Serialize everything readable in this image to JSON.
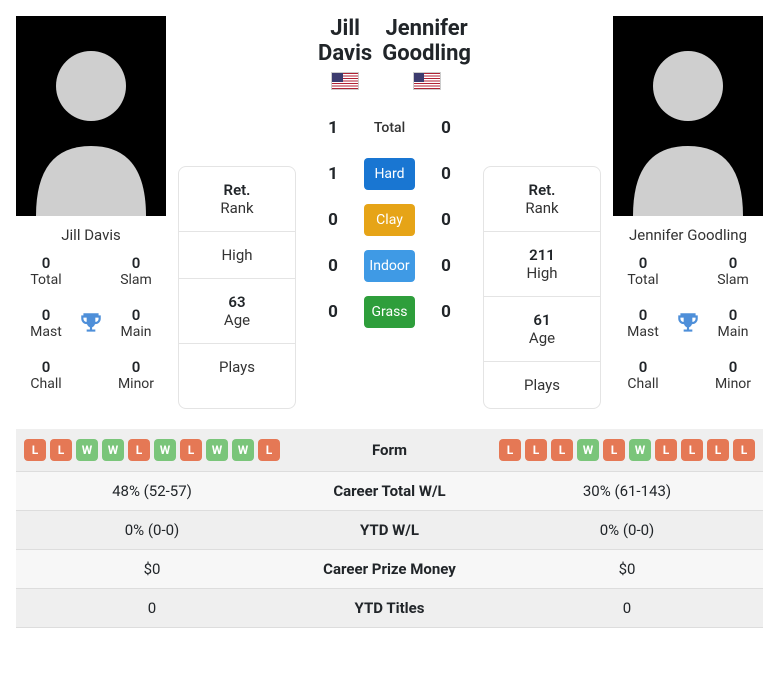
{
  "players": {
    "p1": {
      "name": "Jill Davis",
      "country": "US",
      "titles": {
        "total": 0,
        "slam": 0,
        "mast": 0,
        "main": 0,
        "chall": 0,
        "minor": 0
      },
      "rank": {
        "ret": "Ret.",
        "rank_label": "Rank",
        "high_val": "",
        "high_label": "High",
        "age_val": "63",
        "age_label": "Age",
        "plays_val": "",
        "plays_label": "Plays"
      }
    },
    "p2": {
      "name": "Jennifer Goodling",
      "country": "US",
      "titles": {
        "total": 0,
        "slam": 0,
        "mast": 0,
        "main": 0,
        "chall": 0,
        "minor": 0
      },
      "rank": {
        "ret": "Ret.",
        "rank_label": "Rank",
        "high_val": "211",
        "high_label": "High",
        "age_val": "61",
        "age_label": "Age",
        "plays_val": "",
        "plays_label": "Plays"
      }
    }
  },
  "title_labels": {
    "total": "Total",
    "slam": "Slam",
    "mast": "Mast",
    "main": "Main",
    "chall": "Chall",
    "minor": "Minor"
  },
  "h2h": {
    "rows": [
      {
        "p1": 1,
        "label": "Total",
        "p2": 0,
        "cls": "surface-total"
      },
      {
        "p1": 1,
        "label": "Hard",
        "p2": 0,
        "cls": "surface-hard"
      },
      {
        "p1": 0,
        "label": "Clay",
        "p2": 0,
        "cls": "surface-clay"
      },
      {
        "p1": 0,
        "label": "Indoor",
        "p2": 0,
        "cls": "surface-indoor"
      },
      {
        "p1": 0,
        "label": "Grass",
        "p2": 0,
        "cls": "surface-grass"
      }
    ]
  },
  "form": {
    "label": "Form",
    "p1": [
      "L",
      "L",
      "W",
      "W",
      "L",
      "W",
      "L",
      "W",
      "W",
      "L"
    ],
    "p2": [
      "L",
      "L",
      "L",
      "W",
      "L",
      "W",
      "L",
      "L",
      "L",
      "L"
    ]
  },
  "stats": [
    {
      "p1": "48% (52-57)",
      "label": "Career Total W/L",
      "p2": "30% (61-143)"
    },
    {
      "p1": "0% (0-0)",
      "label": "YTD W/L",
      "p2": "0% (0-0)"
    },
    {
      "p1": "$0",
      "label": "Career Prize Money",
      "p2": "$0"
    },
    {
      "p1": "0",
      "label": "YTD Titles",
      "p2": "0"
    }
  ],
  "colors": {
    "hard": "#1976d2",
    "clay": "#e6a417",
    "indoor": "#3f9ae5",
    "grass": "#2e9e3b",
    "form_win": "#7ac57a",
    "form_loss": "#e57855",
    "trophy": "#4e8fd9"
  }
}
